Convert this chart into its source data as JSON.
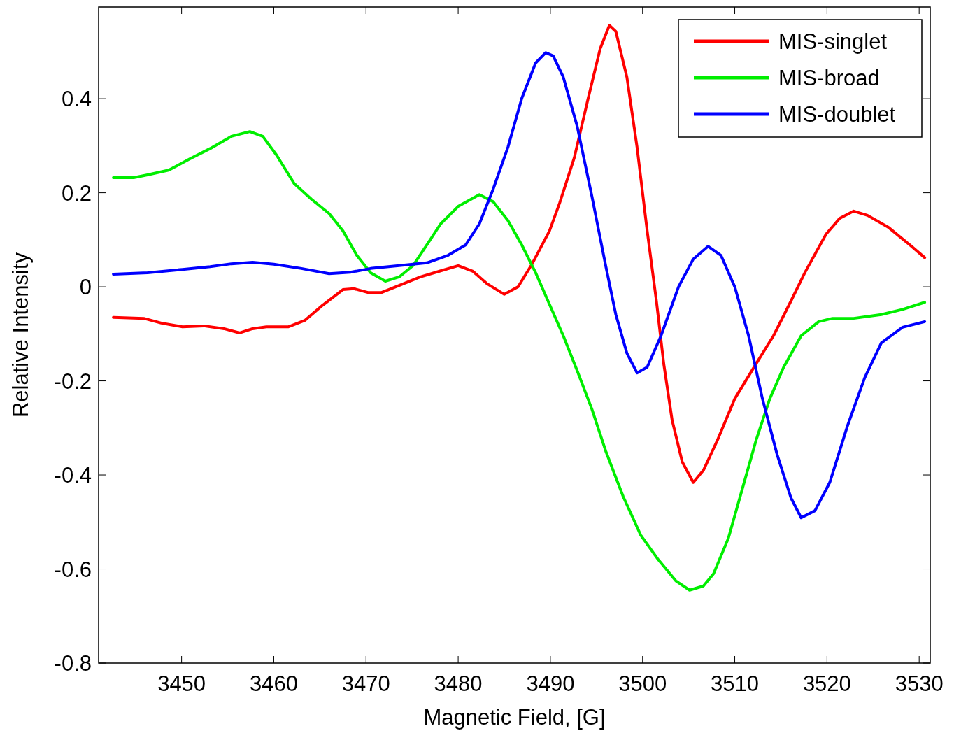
{
  "chart_data": {
    "type": "line",
    "xlabel": "Magnetic Field, [G]",
    "ylabel": "Relative Intensity",
    "xlim": [
      3441,
      3531.2
    ],
    "ylim": [
      -0.8,
      0.595
    ],
    "xticks": [
      3450,
      3460,
      3470,
      3480,
      3490,
      3500,
      3510,
      3520,
      3530
    ],
    "yticks": [
      -0.8,
      -0.6,
      -0.4,
      -0.2,
      0,
      0.2,
      0.4
    ],
    "legend": "top right",
    "grid": false,
    "series": [
      {
        "name": "MIS-singlet",
        "color": "#ff0000",
        "x": [
          3442.6,
          3445.9,
          3447.8,
          3450.1,
          3452.4,
          3454.6,
          3456.3,
          3457.7,
          3459.2,
          3461.6,
          3463.4,
          3465.3,
          3467.5,
          3468.7,
          3470.2,
          3471.7,
          3473.6,
          3475.9,
          3478.1,
          3480,
          3481.6,
          3483.1,
          3485,
          3486.5,
          3488,
          3489.9,
          3491,
          3492.6,
          3494.1,
          3495.4,
          3496.4,
          3497.1,
          3498.3,
          3499.4,
          3500.5,
          3501.5,
          3502.3,
          3503.2,
          3504.3,
          3505.5,
          3506.6,
          3508.1,
          3510,
          3512.3,
          3514.2,
          3516.1,
          3517.6,
          3519.9,
          3521.4,
          3522.9,
          3524.4,
          3526.7,
          3529,
          3530.6
        ],
        "values": [
          -0.065,
          -0.067,
          -0.077,
          -0.085,
          -0.083,
          -0.089,
          -0.098,
          -0.089,
          -0.085,
          -0.085,
          -0.071,
          -0.039,
          -0.006,
          -0.004,
          -0.012,
          -0.012,
          0.003,
          0.021,
          0.034,
          0.045,
          0.033,
          0.007,
          -0.016,
          0,
          0.048,
          0.119,
          0.178,
          0.275,
          0.401,
          0.506,
          0.556,
          0.543,
          0.446,
          0.297,
          0.119,
          -0.03,
          -0.164,
          -0.283,
          -0.372,
          -0.416,
          -0.39,
          -0.327,
          -0.238,
          -0.164,
          -0.104,
          -0.03,
          0.03,
          0.112,
          0.146,
          0.161,
          0.152,
          0.126,
          0.089,
          0.062
        ]
      },
      {
        "name": "MIS-broad",
        "color": "#00ee00",
        "x": [
          3442.6,
          3444.8,
          3446.3,
          3448.6,
          3450.8,
          3453.1,
          3455.4,
          3457.4,
          3458.8,
          3460.3,
          3462.2,
          3464.1,
          3466,
          3467.5,
          3469,
          3470.5,
          3472.1,
          3473.6,
          3475.1,
          3476.6,
          3478.1,
          3480,
          3482.3,
          3483.8,
          3485.4,
          3486.9,
          3488.4,
          3489.9,
          3491.4,
          3492.9,
          3494.5,
          3496,
          3497.9,
          3499.8,
          3501.7,
          3503.6,
          3505.1,
          3506.6,
          3507.7,
          3509.3,
          3510.8,
          3512.3,
          3513.8,
          3515.3,
          3517.2,
          3519.1,
          3520.6,
          3522.9,
          3525.9,
          3528.2,
          3530.6
        ],
        "values": [
          0.232,
          0.232,
          0.238,
          0.248,
          0.271,
          0.294,
          0.32,
          0.33,
          0.32,
          0.28,
          0.22,
          0.186,
          0.156,
          0.119,
          0.067,
          0.03,
          0.012,
          0.021,
          0.045,
          0.089,
          0.134,
          0.171,
          0.196,
          0.181,
          0.141,
          0.089,
          0.03,
          -0.037,
          -0.104,
          -0.178,
          -0.26,
          -0.349,
          -0.446,
          -0.528,
          -0.58,
          -0.625,
          -0.645,
          -0.636,
          -0.61,
          -0.535,
          -0.431,
          -0.327,
          -0.238,
          -0.171,
          -0.104,
          -0.074,
          -0.067,
          -0.067,
          -0.059,
          -0.048,
          -0.033
        ]
      },
      {
        "name": "MIS-doublet",
        "color": "#0000ff",
        "x": [
          3442.6,
          3446.3,
          3450.1,
          3453.1,
          3455.4,
          3457.7,
          3460,
          3463,
          3466,
          3468.3,
          3470.5,
          3473.6,
          3476.6,
          3478.9,
          3480.8,
          3482.3,
          3483.8,
          3485.4,
          3486.9,
          3488.4,
          3489.5,
          3490.3,
          3491.4,
          3492.9,
          3494.5,
          3496,
          3497.1,
          3498.3,
          3499.4,
          3500.5,
          3502,
          3503.9,
          3505.5,
          3507.1,
          3508.5,
          3510,
          3511.5,
          3513,
          3514.6,
          3516.1,
          3517.2,
          3518.7,
          3520.3,
          3522.2,
          3524.1,
          3525.9,
          3528.2,
          3530.6
        ],
        "values": [
          0.027,
          0.03,
          0.037,
          0.043,
          0.049,
          0.052,
          0.048,
          0.039,
          0.028,
          0.031,
          0.039,
          0.045,
          0.051,
          0.067,
          0.089,
          0.134,
          0.208,
          0.297,
          0.401,
          0.476,
          0.498,
          0.491,
          0.446,
          0.342,
          0.193,
          0.045,
          -0.059,
          -0.141,
          -0.183,
          -0.171,
          -0.104,
          0,
          0.059,
          0.086,
          0.067,
          0,
          -0.104,
          -0.238,
          -0.357,
          -0.449,
          -0.491,
          -0.476,
          -0.416,
          -0.297,
          -0.193,
          -0.119,
          -0.086,
          -0.074
        ]
      }
    ]
  }
}
